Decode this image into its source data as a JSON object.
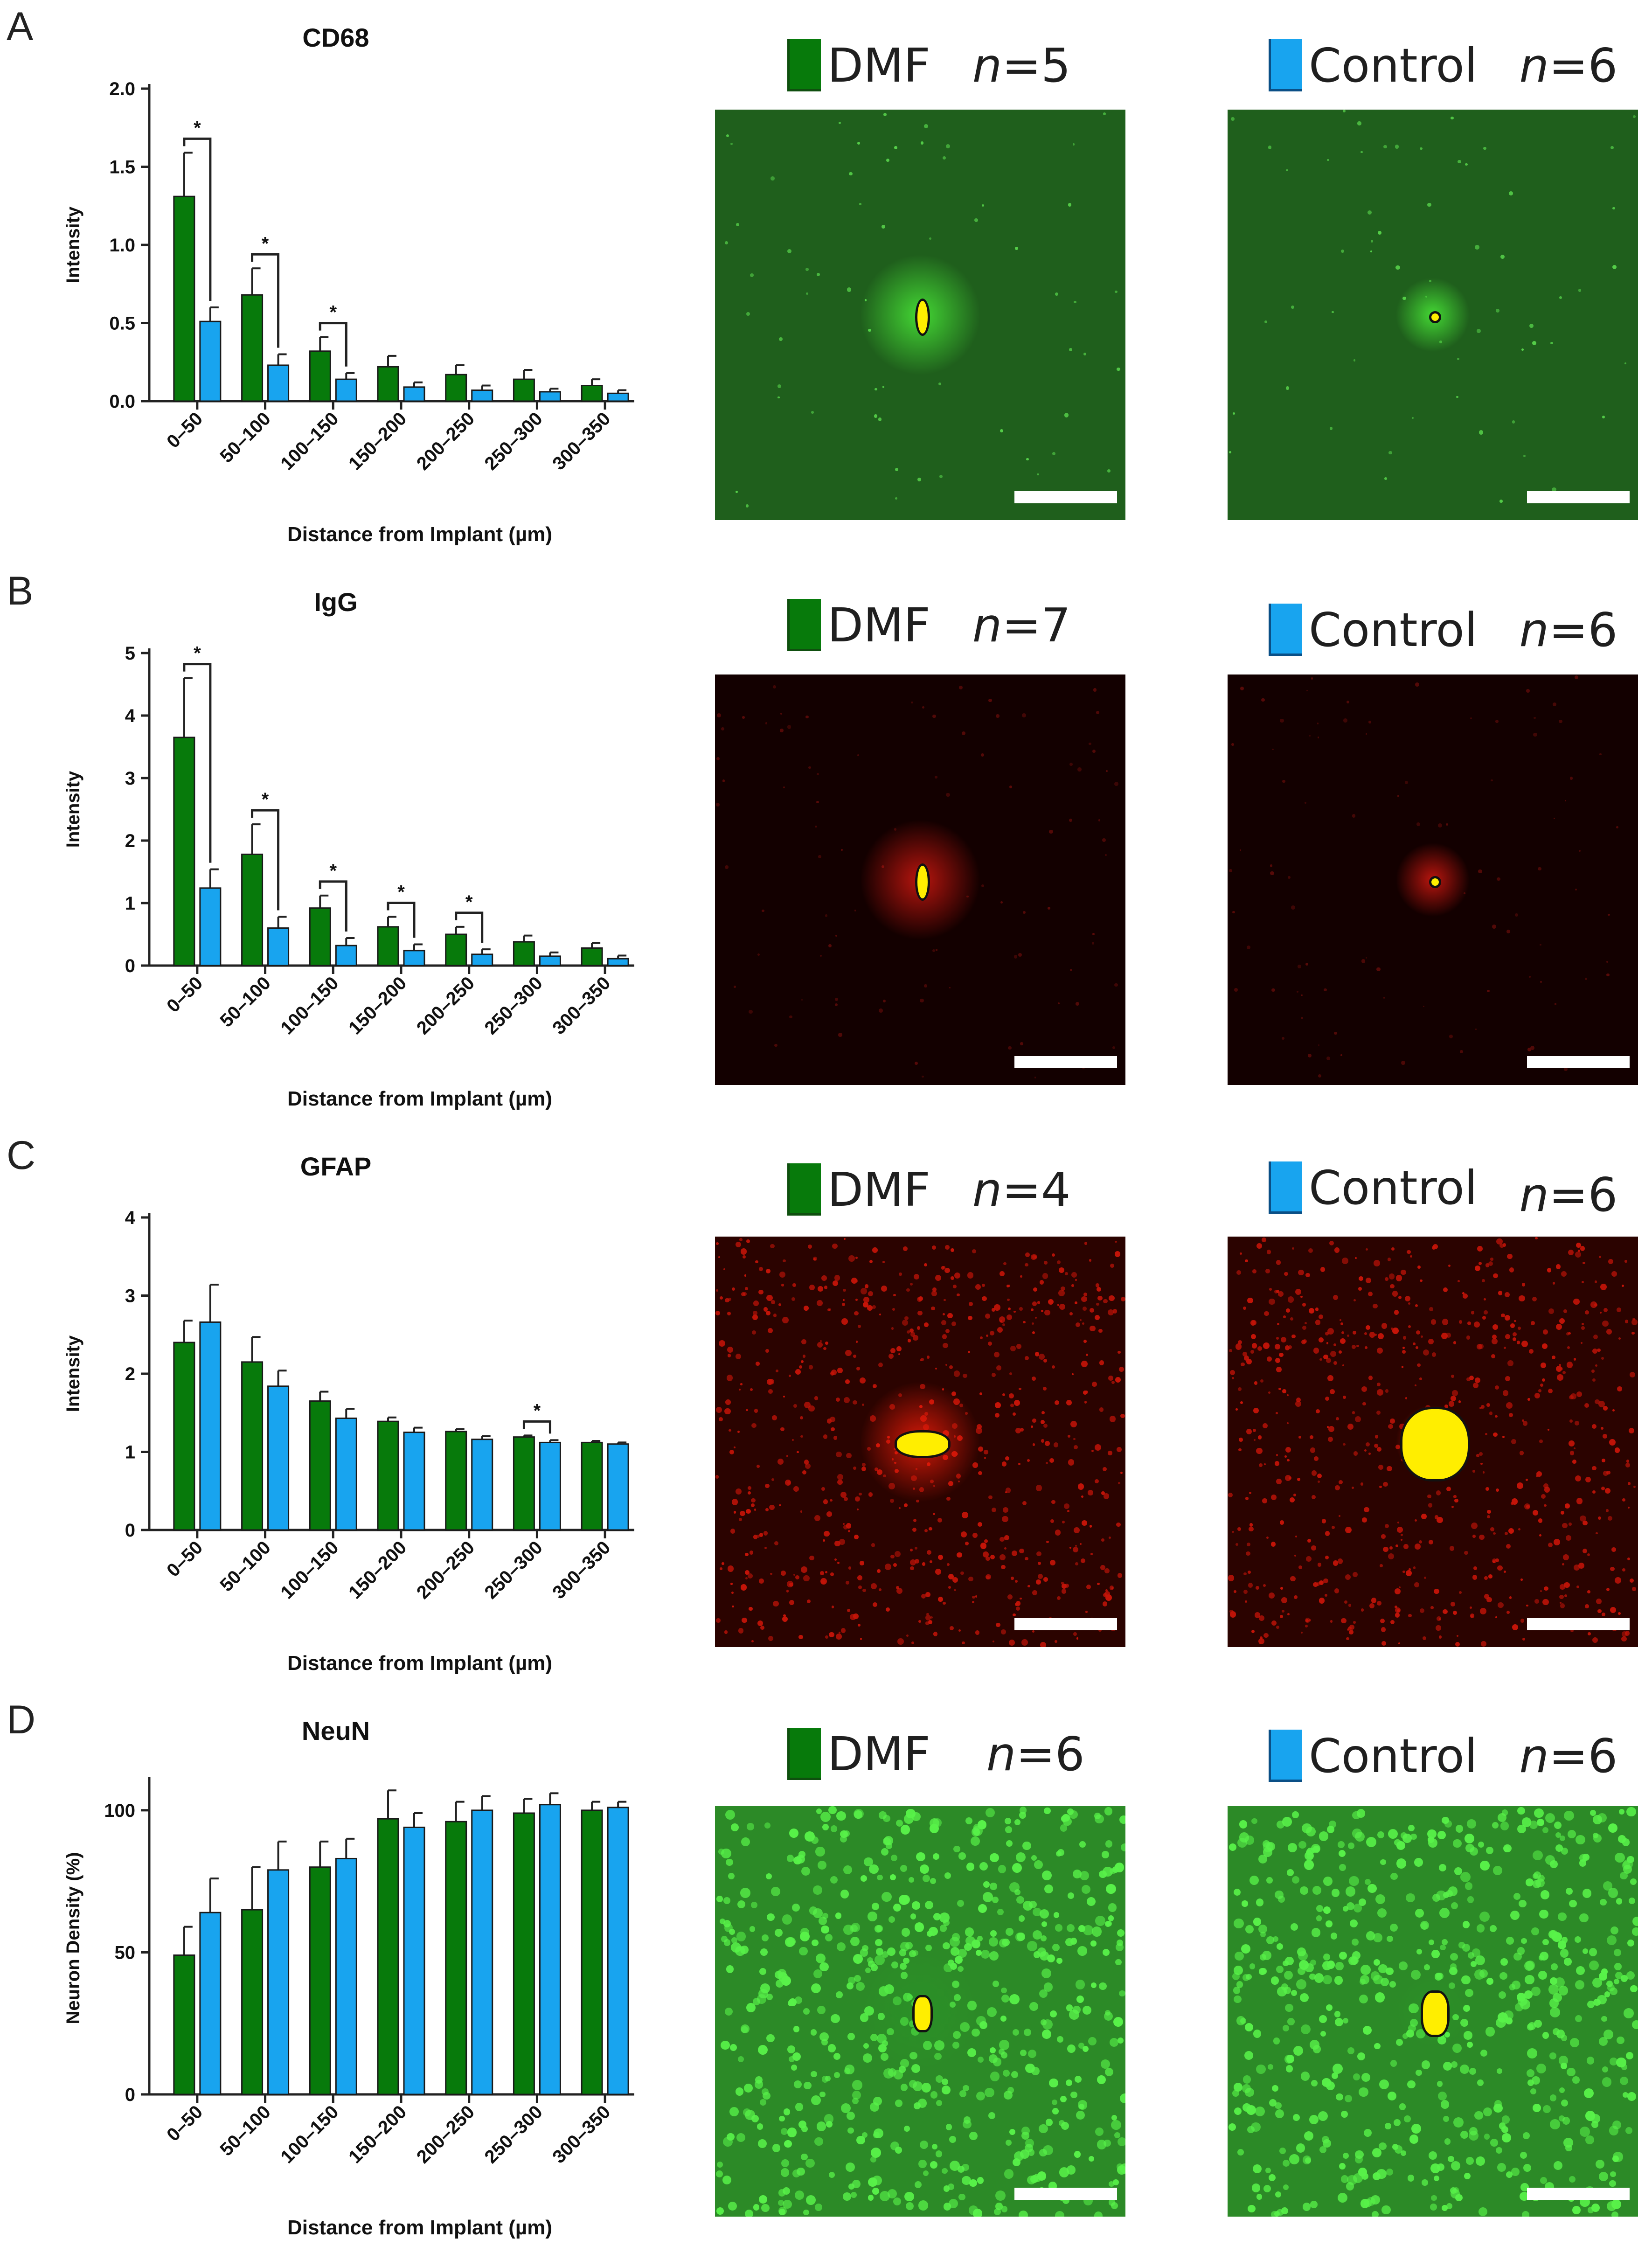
{
  "colors": {
    "dmf": "#077a0b",
    "control": "#18a4ef",
    "axis": "#222222"
  },
  "legend": {
    "dmf_label": "DMF",
    "control_label": "Control",
    "n_prefix": "n"
  },
  "panels": [
    {
      "letter": "A",
      "dmf_n": "=5",
      "control_n": "=6",
      "stain": "green-sparse",
      "chart_data": {
        "type": "bar",
        "title": "CD68",
        "xlabel": "Distance from Implant  (µm)",
        "ylabel": "Intensity",
        "ylim": [
          0,
          2.0
        ],
        "yticks": [
          "0.0",
          "0.5",
          "1.0",
          "1.5",
          "2.0"
        ],
        "categories": [
          "0–50",
          "50–100",
          "100–150",
          "150–200",
          "200–250",
          "250–300",
          "300–350"
        ],
        "series": [
          {
            "name": "DMF",
            "values": [
              1.31,
              0.68,
              0.32,
              0.22,
              0.17,
              0.14,
              0.1
            ],
            "errors": [
              0.28,
              0.17,
              0.09,
              0.07,
              0.06,
              0.06,
              0.04
            ]
          },
          {
            "name": "Control",
            "values": [
              0.51,
              0.23,
              0.14,
              0.09,
              0.07,
              0.06,
              0.05
            ],
            "errors": [
              0.09,
              0.07,
              0.04,
              0.03,
              0.03,
              0.02,
              0.02
            ]
          }
        ],
        "significance": [
          0,
          1,
          2
        ],
        "sig_marker": "*"
      }
    },
    {
      "letter": "B",
      "dmf_n": "=7",
      "control_n": "=6",
      "stain": "red-dark",
      "chart_data": {
        "type": "bar",
        "title": "IgG",
        "xlabel": "Distance from Implant  (µm)",
        "ylabel": "Intensity",
        "ylim": [
          0,
          5
        ],
        "yticks": [
          "0",
          "1",
          "2",
          "3",
          "4",
          "5"
        ],
        "categories": [
          "0–50",
          "50–100",
          "100–150",
          "150–200",
          "200–250",
          "250–300",
          "300–350"
        ],
        "series": [
          {
            "name": "DMF",
            "values": [
              3.65,
              1.78,
              0.92,
              0.62,
              0.5,
              0.38,
              0.28
            ],
            "errors": [
              0.95,
              0.48,
              0.2,
              0.16,
              0.12,
              0.1,
              0.08
            ]
          },
          {
            "name": "Control",
            "values": [
              1.24,
              0.6,
              0.32,
              0.24,
              0.18,
              0.15,
              0.11
            ],
            "errors": [
              0.3,
              0.18,
              0.12,
              0.1,
              0.08,
              0.06,
              0.05
            ]
          }
        ],
        "significance": [
          0,
          1,
          2,
          3,
          4
        ],
        "sig_marker": "*"
      }
    },
    {
      "letter": "C",
      "dmf_n": "=4",
      "control_n": "=6",
      "stain": "red-fibrous",
      "chart_data": {
        "type": "bar",
        "title": "GFAP",
        "xlabel": "Distance from Implant  (µm)",
        "ylabel": "Intensity",
        "ylim": [
          0,
          4
        ],
        "yticks": [
          "0",
          "1",
          "2",
          "3",
          "4"
        ],
        "categories": [
          "0–50",
          "50–100",
          "100–150",
          "150–200",
          "200–250",
          "250–300",
          "300–350"
        ],
        "series": [
          {
            "name": "DMF",
            "values": [
              2.4,
              2.15,
              1.65,
              1.39,
              1.26,
              1.19,
              1.12
            ],
            "errors": [
              0.28,
              0.32,
              0.12,
              0.05,
              0.03,
              0.02,
              0.02
            ]
          },
          {
            "name": "Control",
            "values": [
              2.66,
              1.84,
              1.43,
              1.25,
              1.16,
              1.12,
              1.1
            ],
            "errors": [
              0.48,
              0.2,
              0.12,
              0.06,
              0.04,
              0.03,
              0.02
            ]
          }
        ],
        "significance": [
          5
        ],
        "sig_marker": "*"
      }
    },
    {
      "letter": "D",
      "dmf_n": "=6",
      "control_n": "=6",
      "stain": "green-neurons",
      "chart_data": {
        "type": "bar",
        "title": "NeuN",
        "xlabel": "Distance from Implant  (µm)",
        "ylabel": "Neuron Density  (%)",
        "ylim": [
          0,
          110
        ],
        "yticks": [
          "0",
          "50",
          "100"
        ],
        "ytick_values": [
          0,
          50,
          100
        ],
        "categories": [
          "0–50",
          "50–100",
          "100–150",
          "150–200",
          "200–250",
          "250–300",
          "300–350"
        ],
        "series": [
          {
            "name": "DMF",
            "values": [
              49,
              65,
              80,
              97,
              96,
              99,
              100
            ],
            "errors": [
              10,
              15,
              9,
              10,
              7,
              5,
              3
            ]
          },
          {
            "name": "Control",
            "values": [
              64,
              79,
              83,
              94,
              100,
              102,
              101
            ],
            "errors": [
              12,
              10,
              7,
              5,
              5,
              4,
              2
            ]
          }
        ],
        "significance": [],
        "sig_marker": "*"
      }
    }
  ]
}
